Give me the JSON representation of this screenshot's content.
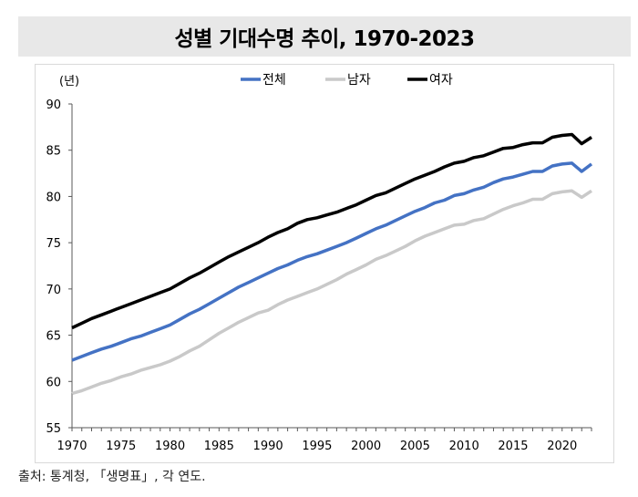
{
  "title": "성별 기대수명 추이, 1970-2023",
  "source": "출처: 통계청, 「생명표」, 각 연도.",
  "chart_data": {
    "type": "line",
    "title": "성별 기대수명 추이, 1970-2023",
    "ylabel": "(년)",
    "xlabel": "",
    "ylim": [
      55,
      90
    ],
    "xlim": [
      1970,
      2023
    ],
    "yticks": [
      55,
      60,
      65,
      70,
      75,
      80,
      85,
      90
    ],
    "xticks": [
      1970,
      1975,
      1980,
      1985,
      1990,
      1995,
      2000,
      2005,
      2010,
      2015,
      2020
    ],
    "legend_position": "top-center",
    "grid": false,
    "x": [
      1970,
      1971,
      1972,
      1973,
      1974,
      1975,
      1976,
      1977,
      1978,
      1979,
      1980,
      1981,
      1982,
      1983,
      1984,
      1985,
      1986,
      1987,
      1988,
      1989,
      1990,
      1991,
      1992,
      1993,
      1994,
      1995,
      1996,
      1997,
      1998,
      1999,
      2000,
      2001,
      2002,
      2003,
      2004,
      2005,
      2006,
      2007,
      2008,
      2009,
      2010,
      2011,
      2012,
      2013,
      2014,
      2015,
      2016,
      2017,
      2018,
      2019,
      2020,
      2021,
      2022,
      2023
    ],
    "series": [
      {
        "name": "전체",
        "color": "#4472c4",
        "values": [
          62.3,
          62.7,
          63.1,
          63.5,
          63.8,
          64.2,
          64.6,
          64.9,
          65.3,
          65.7,
          66.1,
          66.7,
          67.3,
          67.8,
          68.4,
          69.0,
          69.6,
          70.2,
          70.7,
          71.2,
          71.7,
          72.2,
          72.6,
          73.1,
          73.5,
          73.8,
          74.2,
          74.6,
          75.0,
          75.5,
          76.0,
          76.5,
          76.9,
          77.4,
          77.9,
          78.4,
          78.8,
          79.3,
          79.6,
          80.1,
          80.3,
          80.7,
          81.0,
          81.5,
          81.9,
          82.1,
          82.4,
          82.7,
          82.7,
          83.3,
          83.5,
          83.6,
          82.7,
          83.5
        ]
      },
      {
        "name": "남자",
        "color": "#c9c9c9",
        "values": [
          58.7,
          59.0,
          59.4,
          59.8,
          60.1,
          60.5,
          60.8,
          61.2,
          61.5,
          61.8,
          62.2,
          62.7,
          63.3,
          63.8,
          64.5,
          65.2,
          65.8,
          66.4,
          66.9,
          67.4,
          67.7,
          68.3,
          68.8,
          69.2,
          69.6,
          70.0,
          70.5,
          71.0,
          71.6,
          72.1,
          72.6,
          73.2,
          73.6,
          74.1,
          74.6,
          75.2,
          75.7,
          76.1,
          76.5,
          76.9,
          77.0,
          77.4,
          77.6,
          78.1,
          78.6,
          79.0,
          79.3,
          79.7,
          79.7,
          80.3,
          80.5,
          80.6,
          79.9,
          80.6
        ]
      },
      {
        "name": "여자",
        "color": "#000000",
        "values": [
          65.8,
          66.3,
          66.8,
          67.2,
          67.6,
          68.0,
          68.4,
          68.8,
          69.2,
          69.6,
          70.0,
          70.6,
          71.2,
          71.7,
          72.3,
          72.9,
          73.5,
          74.0,
          74.5,
          75.0,
          75.6,
          76.1,
          76.5,
          77.1,
          77.5,
          77.7,
          78.0,
          78.3,
          78.7,
          79.1,
          79.6,
          80.1,
          80.4,
          80.9,
          81.4,
          81.9,
          82.3,
          82.7,
          83.2,
          83.6,
          83.8,
          84.2,
          84.4,
          84.8,
          85.2,
          85.3,
          85.6,
          85.8,
          85.8,
          86.4,
          86.6,
          86.7,
          85.7,
          86.4
        ]
      }
    ]
  }
}
